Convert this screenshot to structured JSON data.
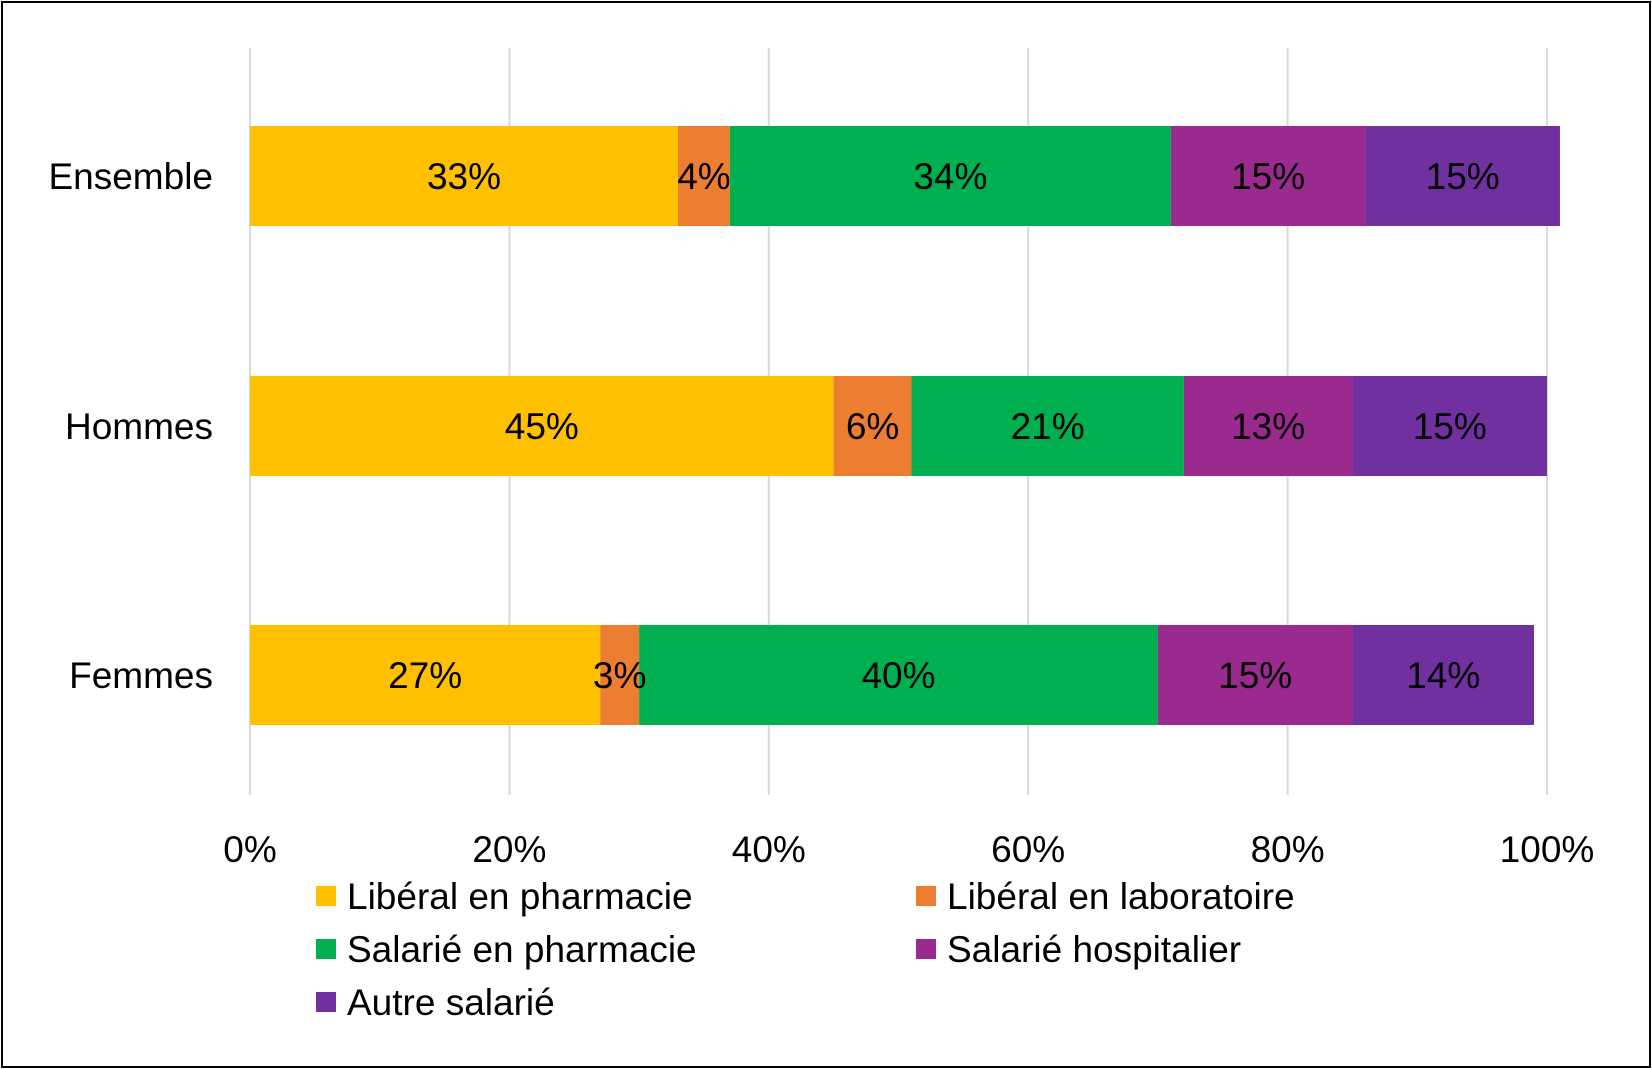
{
  "chart_data": {
    "type": "bar",
    "orientation": "horizontal",
    "stacked": "percent",
    "categories": [
      "Ensemble",
      "Hommes",
      "Femmes"
    ],
    "series": [
      {
        "name": "Libéral en pharmacie",
        "color": "#FFC000",
        "values": [
          33,
          45,
          27
        ],
        "labels": [
          "33%",
          "45%",
          "27%"
        ]
      },
      {
        "name": "Libéral en laboratoire",
        "color": "#ED7D31",
        "values": [
          4,
          6,
          3
        ],
        "labels": [
          "4%",
          "6%",
          "3%"
        ]
      },
      {
        "name": "Salarié en pharmacie",
        "color": "#00B050",
        "values": [
          34,
          21,
          40
        ],
        "labels": [
          "34%",
          "21%",
          "40%"
        ]
      },
      {
        "name": "Salarié hospitalier",
        "color": "#9B2A8E",
        "values": [
          15,
          13,
          15
        ],
        "labels": [
          "15%",
          "13%",
          "15%"
        ]
      },
      {
        "name": "Autre salarié",
        "color": "#7030A0",
        "values": [
          15,
          15,
          14
        ],
        "labels": [
          "15%",
          "15%",
          "14%"
        ]
      }
    ],
    "xlim": [
      0,
      100
    ],
    "x_ticks": [
      0,
      20,
      40,
      60,
      80,
      100
    ],
    "x_tick_labels": [
      "0%",
      "20%",
      "40%",
      "60%",
      "80%",
      "100%"
    ],
    "grid": "vertical",
    "legend_position": "bottom",
    "title": "",
    "xlabel": "",
    "ylabel": ""
  }
}
